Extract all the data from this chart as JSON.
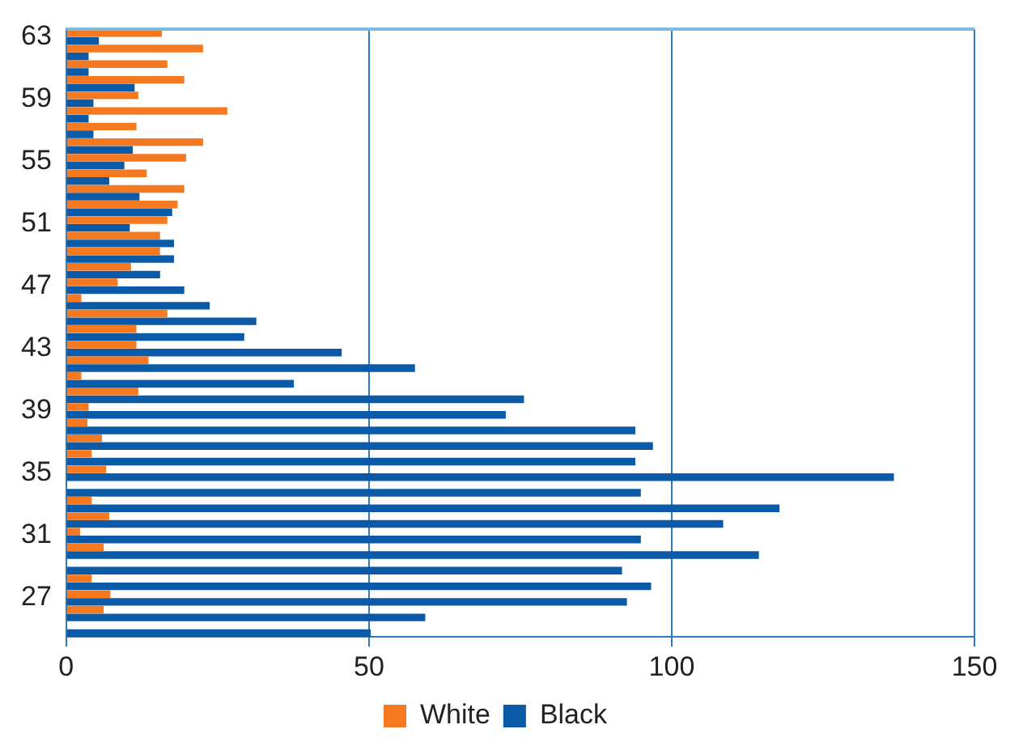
{
  "chart_data": {
    "type": "bar",
    "orientation": "horizontal",
    "categories": [
      "63",
      null,
      null,
      null,
      "59",
      null,
      null,
      null,
      "55",
      null,
      null,
      null,
      "51",
      null,
      null,
      null,
      "47",
      null,
      null,
      null,
      "43",
      null,
      null,
      null,
      "39",
      null,
      null,
      null,
      "35",
      null,
      null,
      null,
      "31",
      null,
      null,
      null,
      "27",
      null,
      null
    ],
    "series": [
      {
        "name": "White",
        "color": "#f47920",
        "values": [
          15.8,
          22.6,
          16.7,
          19.5,
          11.9,
          26.6,
          11.6,
          22.6,
          19.8,
          13.3,
          19.5,
          18.4,
          16.7,
          15.5,
          15.5,
          10.7,
          8.5,
          2.5,
          16.7,
          11.6,
          11.6,
          13.6,
          2.5,
          11.9,
          3.7,
          3.5,
          5.9,
          4.2,
          6.6,
          0,
          4.2,
          7.1,
          2.3,
          6.2,
          0,
          4.2,
          7.3,
          6.2,
          0
        ]
      },
      {
        "name": "Black",
        "color": "#0a5aa8",
        "values": [
          5.4,
          3.7,
          3.7,
          11.3,
          4.5,
          3.7,
          4.5,
          11,
          9.6,
          7.1,
          12.1,
          17.5,
          10.5,
          17.8,
          17.8,
          15.5,
          19.5,
          23.7,
          31.4,
          29.4,
          45.5,
          57.6,
          37.6,
          75.6,
          72.6,
          94,
          96.9,
          94,
          136.7,
          94.9,
          117.8,
          108.5,
          94.9,
          114.4,
          91.8,
          96.6,
          92.6,
          59.3,
          50.3
        ]
      }
    ],
    "xlim": [
      0,
      150
    ],
    "xticks": [
      0,
      50,
      100,
      150
    ],
    "grid": "x",
    "legend": "bottom"
  }
}
